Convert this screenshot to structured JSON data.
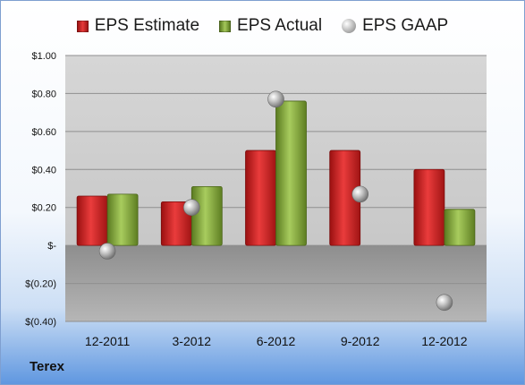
{
  "company": "Terex",
  "legend": [
    {
      "label": "EPS Estimate",
      "color": "#cc2222",
      "shape": "square"
    },
    {
      "label": "EPS Actual",
      "color": "#8cb040",
      "shape": "square"
    },
    {
      "label": "EPS GAAP",
      "color": "#b8b8b8",
      "shape": "circle"
    }
  ],
  "chart_data": {
    "type": "bar",
    "categories": [
      "12-2011",
      "3-2012",
      "6-2012",
      "9-2012",
      "12-2012"
    ],
    "series": [
      {
        "name": "EPS Estimate",
        "values": [
          0.26,
          0.23,
          0.5,
          0.5,
          0.4
        ],
        "color": "#cc2222"
      },
      {
        "name": "EPS Actual",
        "values": [
          0.27,
          0.31,
          0.76,
          null,
          0.19
        ],
        "color": "#8cb040"
      },
      {
        "name": "EPS GAAP",
        "values": [
          -0.03,
          0.2,
          0.77,
          0.27,
          -0.3
        ],
        "color": "#b8b8b8",
        "render": "scatter"
      }
    ],
    "ylim": [
      -0.4,
      1.0
    ],
    "yticks": [
      1.0,
      0.8,
      0.6,
      0.4,
      0.2,
      0,
      -0.2,
      -0.4
    ],
    "ytick_labels": [
      "$1.00",
      "$0.80",
      "$0.60",
      "$0.40",
      "$0.20",
      "$-",
      "$(0.20)",
      "$(0.40)"
    ],
    "grid": true,
    "legend_position": "top"
  }
}
